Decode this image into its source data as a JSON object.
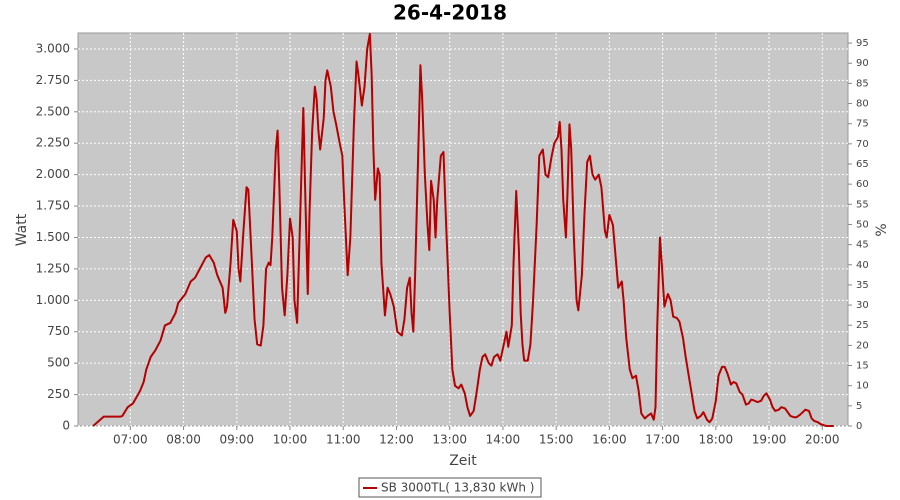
{
  "chart_data": {
    "type": "line",
    "title": "26-4-2018",
    "x_label": "Zeit",
    "y_label": "Watt",
    "y2_label": "%",
    "xlim": [
      "06:01",
      "20:29"
    ],
    "xticks": [
      "07:00",
      "08:00",
      "09:00",
      "10:00",
      "11:00",
      "12:00",
      "13:00",
      "14:00",
      "15:00",
      "16:00",
      "17:00",
      "18:00",
      "19:00",
      "20:00"
    ],
    "ylim": [
      0,
      3127
    ],
    "yticks": [
      0,
      250,
      500,
      750,
      {
        "value": 1000,
        "label": "1.000"
      },
      {
        "value": 1250,
        "label": "1.250"
      },
      {
        "value": 1500,
        "label": "1.500"
      },
      {
        "value": 1750,
        "label": "1.750"
      },
      {
        "value": 2000,
        "label": "2.000"
      },
      {
        "value": 2250,
        "label": "2.250"
      },
      {
        "value": 2500,
        "label": "2.500"
      },
      {
        "value": 2750,
        "label": "2.750"
      },
      {
        "value": 3000,
        "label": "3.000"
      }
    ],
    "y2lim": [
      0,
      97.5
    ],
    "y2ticks": [
      0,
      5,
      10,
      15,
      20,
      25,
      30,
      35,
      40,
      45,
      50,
      55,
      60,
      65,
      70,
      75,
      80,
      85,
      90,
      95
    ],
    "grid": true,
    "legend": "bottom",
    "x": [
      "06:18",
      "06:26",
      "06:30",
      "06:49",
      "06:51",
      "06:57",
      "07:03",
      "07:11",
      "07:15",
      "07:18",
      "07:23",
      "07:28",
      "07:34",
      "07:39",
      "07:45",
      "07:51",
      "07:54",
      "08:02",
      "08:08",
      "08:13",
      "08:19",
      "08:25",
      "08:29",
      "08:34",
      "08:38",
      "08:44",
      "08:47",
      "08:49",
      "08:53",
      "08:56",
      "09:00",
      "09:02",
      "09:04",
      "09:07",
      "09:11",
      "09:13",
      "09:17",
      "09:20",
      "09:23",
      "09:27",
      "09:30",
      "09:33",
      "09:36",
      "09:38",
      "09:40",
      "09:44",
      "09:46",
      "09:48",
      "09:51",
      "09:54",
      "09:57",
      "10:00",
      "10:03",
      "10:05",
      "10:08",
      "10:12",
      "10:15",
      "10:17",
      "10:20",
      "10:22",
      "10:25",
      "10:28",
      "10:30",
      "10:32",
      "10:34",
      "10:38",
      "10:40",
      "10:42",
      "10:46",
      "10:49",
      "10:52",
      "10:56",
      "10:59",
      "11:01",
      "11:05",
      "11:08",
      "11:12",
      "11:15",
      "11:17",
      "11:21",
      "11:24",
      "11:27",
      "11:30",
      "11:32",
      "11:34",
      "11:36",
      "11:39",
      "11:41",
      "11:43",
      "11:47",
      "11:50",
      "11:53",
      "11:57",
      "12:01",
      "12:06",
      "12:09",
      "12:12",
      "12:15",
      "12:17",
      "12:19",
      "12:21",
      "12:25",
      "12:27",
      "12:29",
      "12:32",
      "12:35",
      "12:37",
      "12:39",
      "12:42",
      "12:44",
      "12:46",
      "12:50",
      "12:53",
      "12:56",
      "13:00",
      "13:03",
      "13:06",
      "13:10",
      "13:13",
      "13:17",
      "13:20",
      "13:23",
      "13:27",
      "13:30",
      "13:34",
      "13:37",
      "13:40",
      "13:44",
      "13:47",
      "13:50",
      "13:54",
      "13:57",
      "14:01",
      "14:04",
      "14:06",
      "14:10",
      "14:12",
      "14:15",
      "14:18",
      "14:20",
      "14:22",
      "14:24",
      "14:28",
      "14:31",
      "14:34",
      "14:38",
      "14:41",
      "14:45",
      "14:48",
      "14:51",
      "14:55",
      "14:58",
      "15:02",
      "15:04",
      "15:06",
      "15:08",
      "15:11",
      "15:13",
      "15:15",
      "15:17",
      "15:20",
      "15:23",
      "15:25",
      "15:29",
      "15:32",
      "15:35",
      "15:38",
      "15:41",
      "15:44",
      "15:48",
      "15:51",
      "15:55",
      "15:57",
      "16:00",
      "16:04",
      "16:07",
      "16:10",
      "16:14",
      "16:16",
      "16:19",
      "16:23",
      "16:26",
      "16:30",
      "16:33",
      "16:36",
      "16:40",
      "16:43",
      "16:47",
      "16:50",
      "16:52",
      "16:54",
      "16:57",
      "16:59",
      "17:02",
      "17:06",
      "17:09",
      "17:12",
      "17:16",
      "17:19",
      "17:23",
      "17:26",
      "17:29",
      "17:33",
      "17:36",
      "17:39",
      "17:43",
      "17:46",
      "17:50",
      "17:53",
      "17:56",
      "18:00",
      "18:03",
      "18:07",
      "18:10",
      "18:13",
      "18:17",
      "18:20",
      "18:23",
      "18:27",
      "18:30",
      "18:34",
      "18:37",
      "18:40",
      "18:44",
      "18:47",
      "18:51",
      "18:54",
      "18:57",
      "19:01",
      "19:04",
      "19:07",
      "19:11",
      "19:14",
      "19:18",
      "19:21",
      "19:24",
      "19:28",
      "19:31",
      "19:35",
      "19:38",
      "19:41",
      "19:45",
      "19:48",
      "19:51",
      "19:55",
      "19:58",
      "20:02",
      "20:05",
      "20:13"
    ],
    "series": [
      {
        "name": "SB 3000TL( 13,830 kWh )",
        "color": "#b40000",
        "values": [
          0,
          50,
          75,
          75,
          80,
          150,
          180,
          280,
          350,
          450,
          550,
          600,
          680,
          800,
          820,
          900,
          980,
          1050,
          1150,
          1180,
          1260,
          1340,
          1360,
          1300,
          1200,
          1100,
          900,
          950,
          1300,
          1640,
          1550,
          1250,
          1150,
          1500,
          1900,
          1880,
          1300,
          850,
          650,
          640,
          800,
          1250,
          1300,
          1280,
          1500,
          2200,
          2350,
          1900,
          1100,
          880,
          1200,
          1650,
          1500,
          1000,
          820,
          1800,
          2530,
          1900,
          1050,
          1700,
          2350,
          2700,
          2600,
          2350,
          2200,
          2450,
          2750,
          2830,
          2700,
          2500,
          2400,
          2250,
          2150,
          1800,
          1200,
          1500,
          2400,
          2900,
          2800,
          2550,
          2700,
          3000,
          3120,
          2800,
          2200,
          1800,
          2050,
          2000,
          1300,
          880,
          1100,
          1050,
          950,
          750,
          720,
          850,
          1100,
          1180,
          900,
          750,
          1200,
          2300,
          2870,
          2600,
          2000,
          1600,
          1400,
          1950,
          1800,
          1500,
          1800,
          2150,
          2180,
          1600,
          900,
          450,
          320,
          300,
          330,
          260,
          150,
          80,
          120,
          250,
          450,
          550,
          570,
          500,
          480,
          550,
          570,
          520,
          650,
          750,
          630,
          800,
          1300,
          1870,
          1400,
          900,
          650,
          520,
          520,
          650,
          1000,
          1600,
          2150,
          2200,
          2000,
          1980,
          2150,
          2250,
          2300,
          2420,
          2200,
          1800,
          1500,
          1900,
          2400,
          2200,
          1500,
          1000,
          920,
          1200,
          1700,
          2100,
          2150,
          2000,
          1960,
          2000,
          1900,
          1550,
          1500,
          1680,
          1600,
          1350,
          1100,
          1150,
          1000,
          700,
          450,
          380,
          400,
          280,
          100,
          60,
          80,
          100,
          50,
          150,
          800,
          1500,
          1300,
          950,
          1050,
          1000,
          870,
          860,
          830,
          700,
          550,
          420,
          250,
          120,
          60,
          80,
          110,
          50,
          30,
          60,
          200,
          400,
          470,
          470,
          420,
          330,
          350,
          340,
          270,
          250,
          170,
          180,
          210,
          200,
          190,
          200,
          240,
          260,
          210,
          150,
          120,
          130,
          150,
          140,
          110,
          80,
          70,
          70,
          90,
          110,
          130,
          120,
          60,
          40,
          30,
          15,
          5,
          0,
          0
        ]
      }
    ]
  }
}
